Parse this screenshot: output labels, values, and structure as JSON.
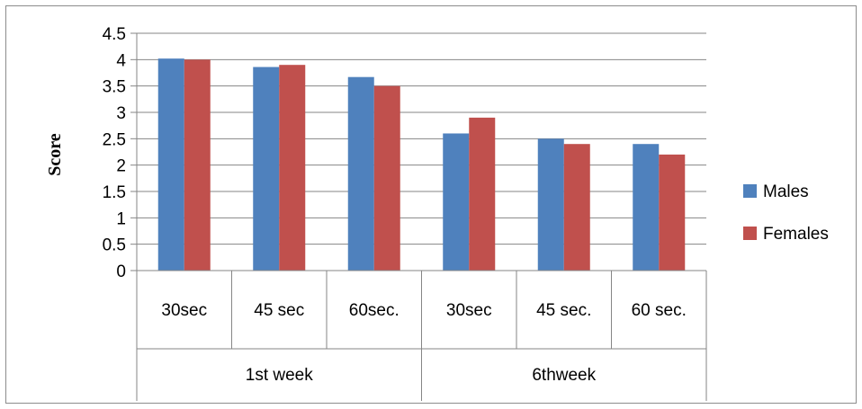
{
  "chart_data": {
    "type": "bar",
    "title": "",
    "xlabel": "",
    "ylabel": "Score",
    "ylim": [
      0,
      4.5
    ],
    "yticks": [
      "0",
      "0.5",
      "1",
      "1.5",
      "2",
      "2.5",
      "3",
      "3.5",
      "4",
      "4.5"
    ],
    "grid": true,
    "legend_position": "right",
    "categories": [
      "30sec",
      "45 sec",
      "60sec.",
      "30sec",
      "45 sec.",
      "60 sec."
    ],
    "groups": [
      {
        "label": "1st week",
        "span": 3
      },
      {
        "label": "6thweek",
        "span": 3
      }
    ],
    "series": [
      {
        "name": "Males",
        "color": "#4f81bd",
        "values": [
          4.02,
          3.86,
          3.67,
          2.6,
          2.5,
          2.4
        ]
      },
      {
        "name": "Females",
        "color": "#c0504d",
        "values": [
          4.0,
          3.9,
          3.5,
          2.9,
          2.4,
          2.2
        ]
      }
    ]
  }
}
